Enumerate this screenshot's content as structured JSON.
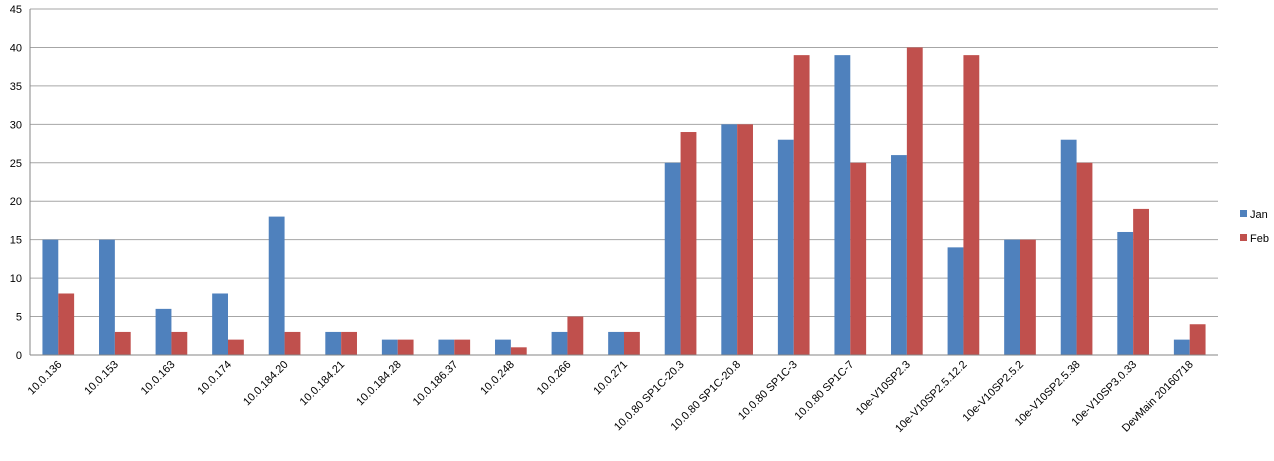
{
  "chart_data": {
    "type": "bar",
    "categories": [
      "10.0.136",
      "10.0.153",
      "10.0.163",
      "10.0.174",
      "10.0.184.20",
      "10.0.184.21",
      "10.0.184.28",
      "10.0.186.37",
      "10.0.248",
      "10.0.266",
      "10.0.271",
      "10.0.80 SP1C-20.3",
      "10.0.80 SP1C-20.8",
      "10.0.80 SP1C-3",
      "10.0.80 SP1C-7",
      "10e-V10SP2.3",
      "10e-V10SP2.5.12.2",
      "10e-V10SP2.5.2",
      "10e-V10SP2.5.38",
      "10e-V10SP3.0.33",
      "DevMain 20160718"
    ],
    "series": [
      {
        "name": "Jan",
        "color": "#4f81bd",
        "values": [
          15,
          15,
          6,
          8,
          18,
          3,
          2,
          2,
          2,
          3,
          3,
          25,
          30,
          28,
          39,
          26,
          14,
          15,
          28,
          16,
          2
        ]
      },
      {
        "name": "Feb",
        "color": "#c0504d",
        "values": [
          8,
          3,
          3,
          2,
          3,
          3,
          2,
          2,
          1,
          5,
          3,
          29,
          30,
          39,
          25,
          40,
          39,
          15,
          25,
          19,
          4
        ]
      }
    ],
    "ylim": [
      0,
      45
    ],
    "yticks": [
      0,
      5,
      10,
      15,
      20,
      25,
      30,
      35,
      40,
      45
    ],
    "grid": true,
    "legend": "right"
  }
}
